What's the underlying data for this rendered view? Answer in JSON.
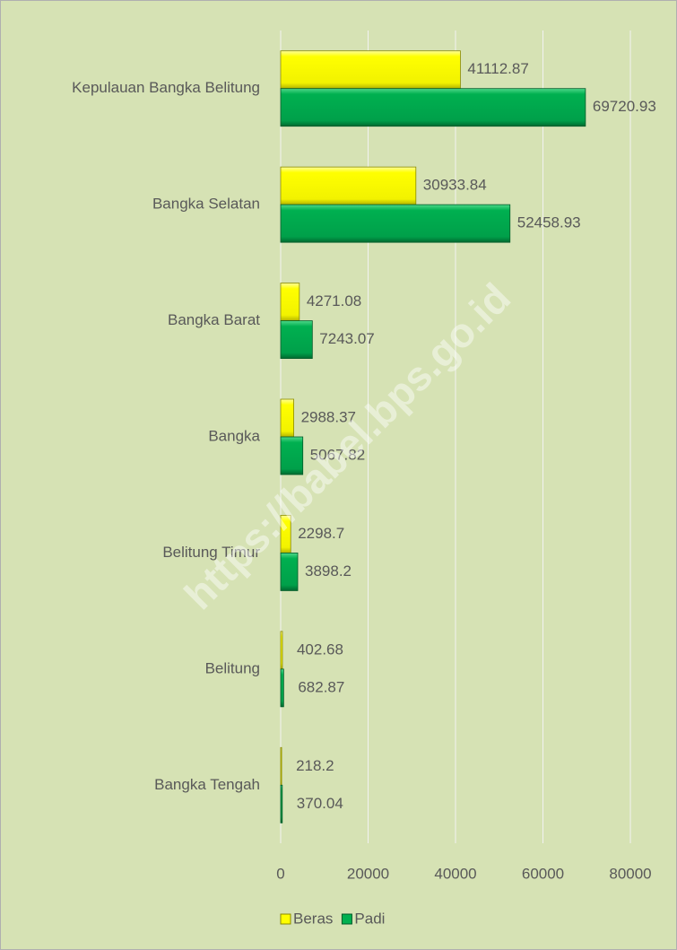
{
  "chart_data": {
    "type": "hbar",
    "categories": [
      "Kepulauan Bangka Belitung",
      "Bangka Selatan",
      "Bangka Barat",
      "Bangka",
      "Belitung Timur",
      "Belitung",
      "Bangka Tengah"
    ],
    "series": [
      {
        "name": "Beras",
        "color": "#ffff00",
        "values": [
          41112.87,
          30933.84,
          4271.08,
          2988.37,
          2298.7,
          402.68,
          218.2
        ]
      },
      {
        "name": "Padi",
        "color": "#00b050",
        "values": [
          69720.93,
          52458.93,
          7243.07,
          5067.82,
          3898.2,
          682.87,
          370.04
        ]
      }
    ],
    "xlim": [
      0,
      80000
    ],
    "xticks": [
      0,
      20000,
      40000,
      60000,
      80000
    ],
    "grid": true,
    "legend": "bottom",
    "watermark": "https://babel.bps.go.id"
  }
}
